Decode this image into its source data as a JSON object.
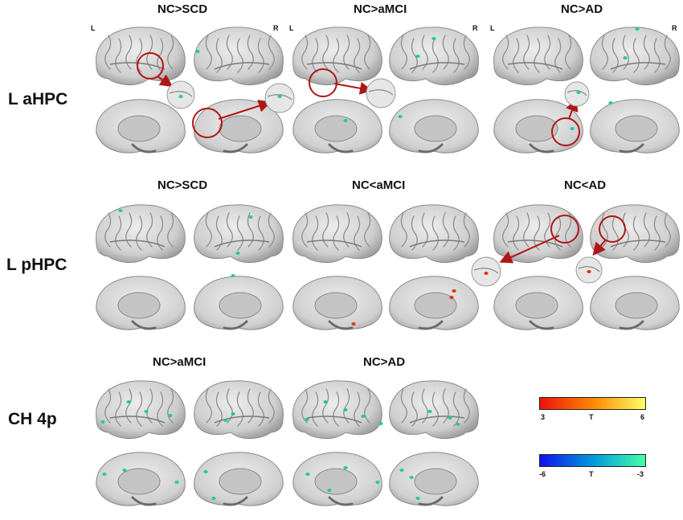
{
  "rows": [
    {
      "label": "L aHPC",
      "titles": [
        "NC>SCD",
        "NC>aMCI",
        "NC>AD"
      ]
    },
    {
      "label": "L pHPC",
      "titles": [
        "NC>SCD",
        "NC<aMCI",
        "NC<AD"
      ]
    },
    {
      "label": "CH 4p",
      "titles": [
        "NC>aMCI",
        "NC>AD"
      ]
    }
  ],
  "hemisphere_labels": {
    "left": "L",
    "right": "R"
  },
  "colorbars": {
    "positive": {
      "min": "3",
      "mid": "T",
      "max": "6",
      "colors": [
        "#ee1111",
        "#ff8800",
        "#ffff66"
      ]
    },
    "negative": {
      "min": "-6",
      "mid": "T",
      "max": "-3",
      "colors": [
        "#1111ee",
        "#0099dd",
        "#44ffaa"
      ]
    }
  },
  "colors": {
    "brain": "#d2d2d2",
    "highlight_circle": "#b01515",
    "positive_blob": "#e03010",
    "negative_blob": "#22c7a0"
  }
}
